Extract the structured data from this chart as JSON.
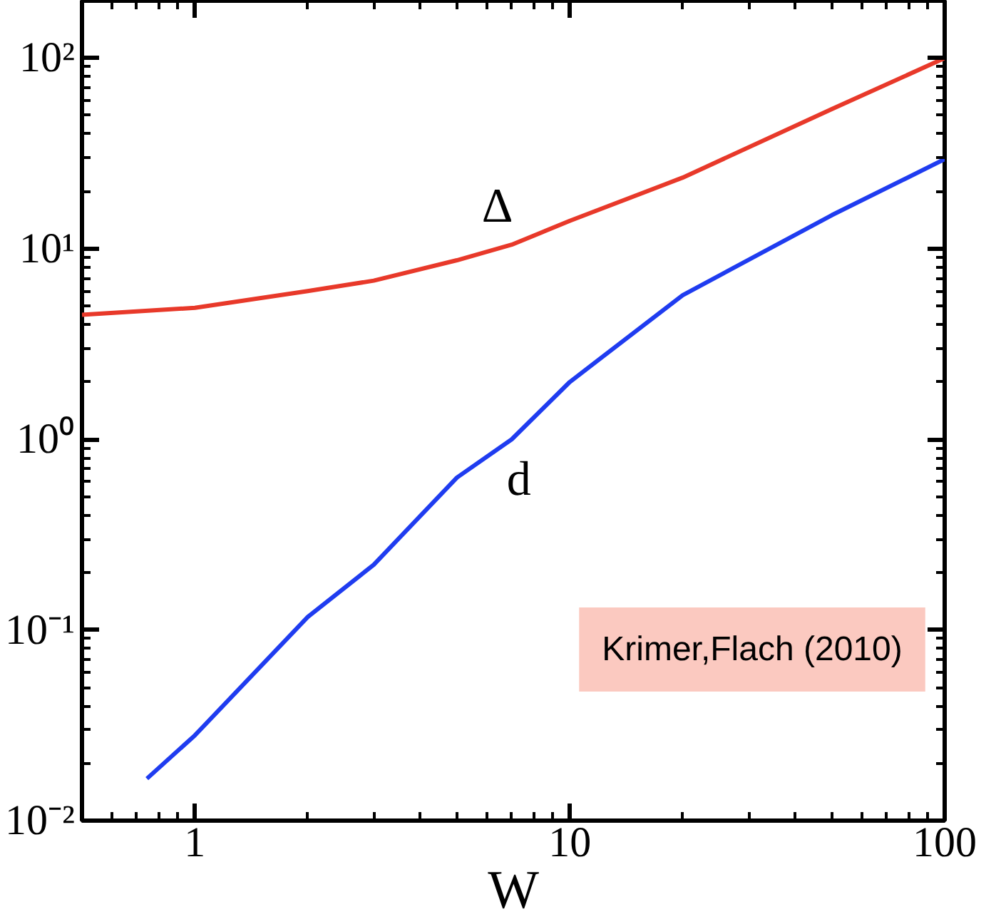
{
  "chart_data": {
    "type": "line",
    "xlabel": "W",
    "log": "xy",
    "grid": false,
    "xlim": [
      0.5,
      100
    ],
    "ylim": [
      0.01,
      200
    ],
    "xticks": [
      1,
      10,
      100
    ],
    "yticks": [
      {
        "value": 0.01,
        "label": "10⁻²"
      },
      {
        "value": 0.1,
        "label": "10⁻¹"
      },
      {
        "value": 1,
        "label": "10⁰"
      },
      {
        "value": 10,
        "label": "10¹"
      },
      {
        "value": 100,
        "label": "10²"
      }
    ],
    "series": [
      {
        "name": "Δ",
        "color": "#e8392a",
        "x": [
          0.5,
          1,
          2,
          3,
          5,
          7,
          10,
          20,
          50,
          100
        ],
        "values": [
          4.5,
          4.9,
          6.0,
          6.8,
          8.7,
          10.5,
          14,
          23.6,
          54,
          100
        ]
      },
      {
        "name": "d",
        "color": "#1f3cf0",
        "x": [
          0.745,
          1,
          2,
          3,
          5,
          7,
          10,
          20,
          50,
          100
        ],
        "values": [
          0.0166,
          0.028,
          0.117,
          0.22,
          0.63,
          1.0,
          2.0,
          5.7,
          15,
          29.5
        ]
      }
    ],
    "legend": false,
    "annotations": [
      "Krimer,Flach (2010)"
    ]
  }
}
